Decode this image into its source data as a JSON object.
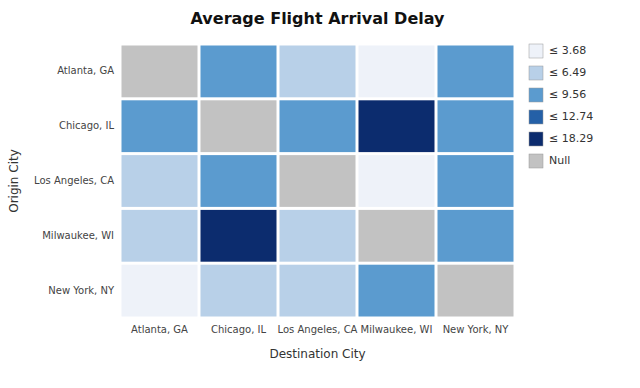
{
  "chart_data": {
    "type": "heatmap",
    "title": "Average Flight Arrival Delay",
    "x_label": "Destination City",
    "y_label": "Origin City",
    "rows": [
      "Atlanta, GA",
      "Chicago, IL",
      "Los Angeles, CA",
      "Milwaukee, WI",
      "New York, NY"
    ],
    "cols": [
      "Atlanta, GA",
      "Chicago, IL",
      "Los Angeles, CA",
      "Milwaukee, WI",
      "New York, NY"
    ],
    "matrix": [
      [
        null,
        9.56,
        6.49,
        3.68,
        9.56
      ],
      [
        9.56,
        null,
        9.56,
        18.29,
        9.56
      ],
      [
        6.49,
        9.56,
        null,
        3.68,
        9.56
      ],
      [
        6.49,
        18.29,
        6.49,
        null,
        9.56
      ],
      [
        3.68,
        6.49,
        6.49,
        9.56,
        null
      ]
    ],
    "color_scale": [
      {
        "value": 3.68,
        "label": "≤ 3.68",
        "color": "#eef2f9"
      },
      {
        "value": 6.49,
        "label": "≤ 6.49",
        "color": "#b8d0e8"
      },
      {
        "value": 9.56,
        "label": "≤ 9.56",
        "color": "#5b9bcf"
      },
      {
        "value": 12.74,
        "label": "≤ 12.74",
        "color": "#2460a7"
      },
      {
        "value": 18.29,
        "label": "≤ 18.29",
        "color": "#0c2c6e"
      }
    ],
    "null_label": "Null",
    "null_color": "#c2c2c2",
    "legend": "right"
  }
}
